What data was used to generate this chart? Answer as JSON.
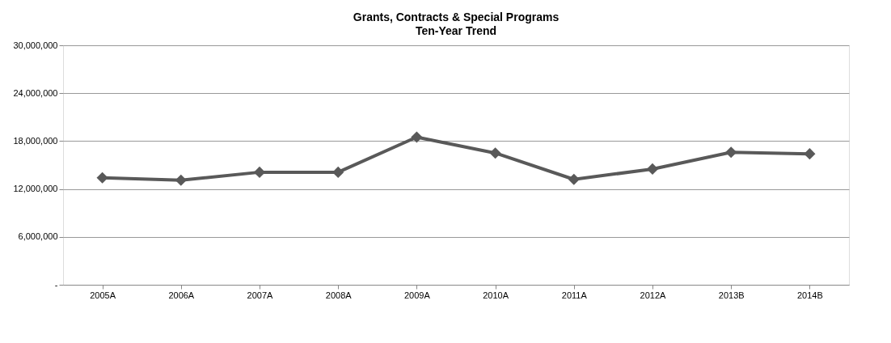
{
  "chart_data": {
    "type": "line",
    "title": "Grants, Contracts & Special Programs",
    "subtitle": "Ten-Year Trend",
    "categories": [
      "2005A",
      "2006A",
      "2007A",
      "2008A",
      "2009A",
      "2010A",
      "2011A",
      "2012A",
      "2013B",
      "2014B"
    ],
    "series": [
      {
        "color": "#595959",
        "values": [
          13400000,
          13100000,
          14100000,
          14100000,
          18500000,
          16500000,
          13200000,
          14500000,
          16600000,
          16400000
        ]
      }
    ],
    "ylim": [
      0,
      30000000
    ],
    "yticks": [
      {
        "value": 0,
        "label": "-"
      },
      {
        "value": 6000000,
        "label": "6,000,000"
      },
      {
        "value": 12000000,
        "label": "12,000,000"
      },
      {
        "value": 18000000,
        "label": "18,000,000"
      },
      {
        "value": 24000000,
        "label": "24,000,000"
      },
      {
        "value": 30000000,
        "label": "30,000,000"
      }
    ],
    "grid": "y",
    "marker": "diamond",
    "line_style": "solid"
  }
}
